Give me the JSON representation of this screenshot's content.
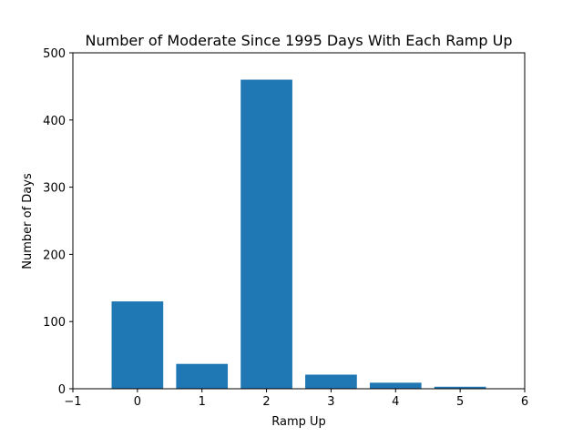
{
  "chart_data": {
    "type": "bar",
    "title": "Number of Moderate Since 1995 Days With Each Ramp Up",
    "xlabel": "Ramp Up",
    "ylabel": "Number of Days",
    "categories": [
      0,
      1,
      2,
      3,
      4,
      5
    ],
    "values": [
      130,
      37,
      460,
      21,
      9,
      3
    ],
    "xlim": [
      -1,
      6
    ],
    "ylim": [
      0,
      500
    ],
    "xticks": [
      "−1",
      "0",
      "1",
      "2",
      "3",
      "4",
      "5",
      "6"
    ],
    "yticks": [
      "0",
      "100",
      "200",
      "300",
      "400",
      "500"
    ],
    "bar_color": "#1f77b4",
    "grid": false
  }
}
